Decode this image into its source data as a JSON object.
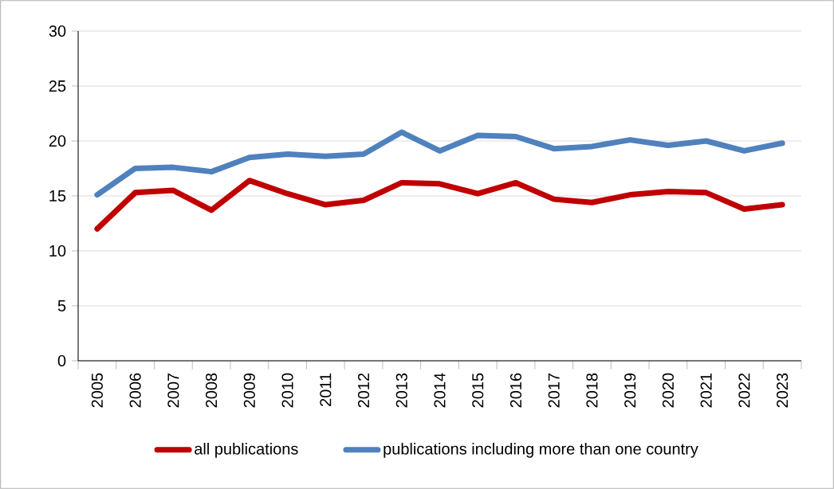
{
  "chart_data": {
    "type": "line",
    "categories": [
      "2005",
      "2006",
      "2007",
      "2008",
      "2009",
      "2010",
      "2011",
      "2012",
      "2013",
      "2014",
      "2015",
      "2016",
      "2017",
      "2018",
      "2019",
      "2020",
      "2021",
      "2022",
      "2023"
    ],
    "series": [
      {
        "name": "all publications",
        "color": "#c00000",
        "values": [
          12.0,
          15.3,
          15.5,
          13.7,
          16.4,
          15.2,
          14.2,
          14.6,
          16.2,
          16.1,
          15.2,
          16.2,
          14.7,
          14.4,
          15.1,
          15.4,
          15.3,
          13.8,
          14.2
        ]
      },
      {
        "name": "publications including more than one country",
        "color": "#4f81bd",
        "values": [
          15.1,
          17.5,
          17.6,
          17.2,
          18.5,
          18.8,
          18.6,
          18.8,
          20.8,
          19.1,
          20.5,
          20.4,
          19.3,
          19.5,
          20.1,
          19.6,
          20.0,
          19.1,
          19.8
        ]
      }
    ],
    "ylim": [
      0,
      30
    ],
    "yticks": [
      0,
      5,
      10,
      15,
      20,
      25,
      30
    ],
    "grid": "y",
    "legend": "bottom",
    "marker": "none",
    "line_style": "solid"
  }
}
